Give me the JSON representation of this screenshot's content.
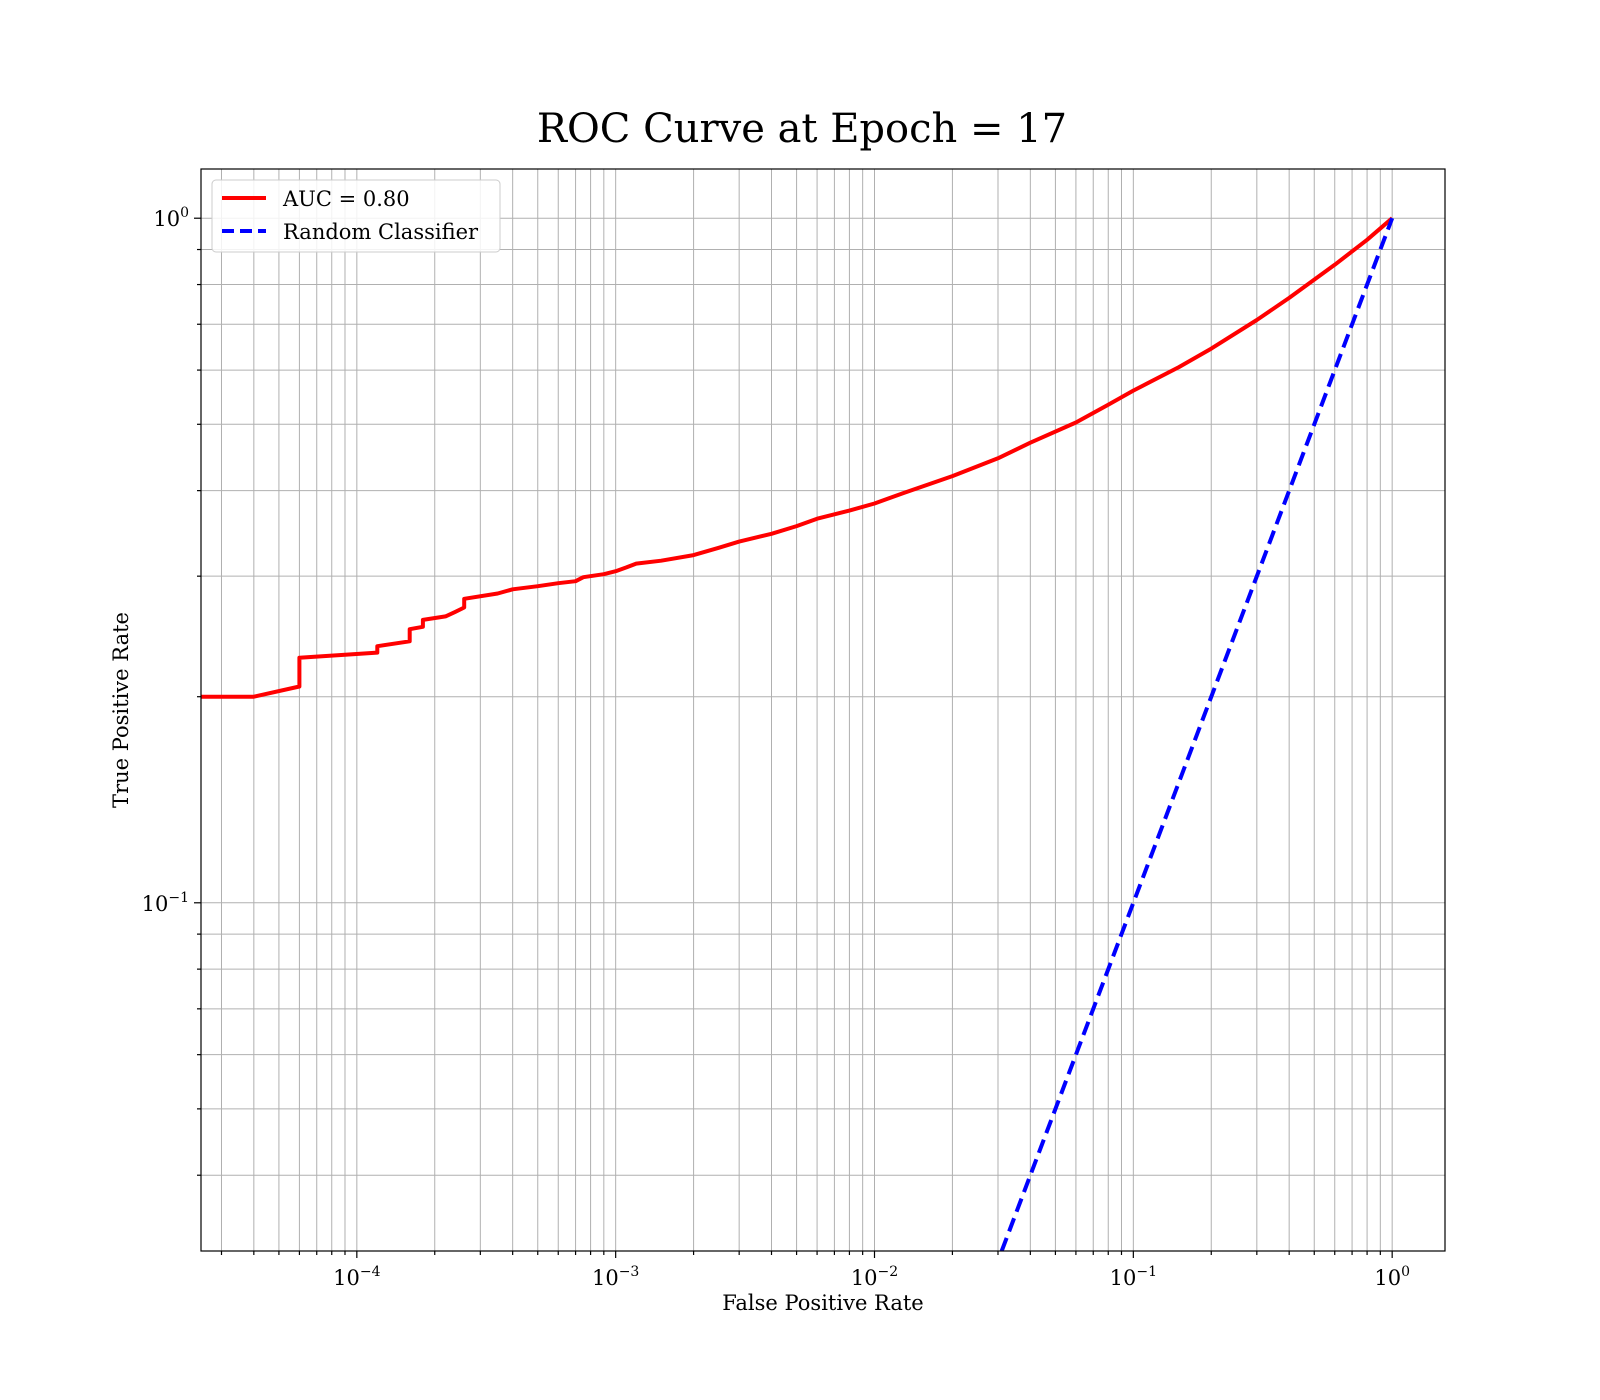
{
  "chart_data": {
    "type": "line",
    "title": "ROC Curve at Epoch = 17",
    "xlabel": "False Positive Rate",
    "ylabel": "True Positive Rate",
    "xscale": "log",
    "yscale": "log",
    "xlim": [
      2.5e-05,
      1.6
    ],
    "ylim": [
      0.031,
      1.18
    ],
    "grid": true,
    "legend_position": "top-left",
    "x_tick_labels": [
      {
        "base": "10",
        "exp": "−4",
        "value": 0.0001
      },
      {
        "base": "10",
        "exp": "−3",
        "value": 0.001
      },
      {
        "base": "10",
        "exp": "−2",
        "value": 0.01
      },
      {
        "base": "10",
        "exp": "−1",
        "value": 0.1
      },
      {
        "base": "10",
        "exp": "0",
        "value": 1
      }
    ],
    "y_tick_labels": [
      {
        "base": "10",
        "exp": "−1",
        "value": 0.1
      },
      {
        "base": "10",
        "exp": "0",
        "value": 1
      }
    ],
    "series": [
      {
        "name": "AUC = 0.80",
        "color": "#ff0000",
        "style": "solid",
        "points": [
          [
            2.5e-05,
            0.2
          ],
          [
            4e-05,
            0.2
          ],
          [
            6e-05,
            0.207
          ],
          [
            6e-05,
            0.228
          ],
          [
            0.00012,
            0.232
          ],
          [
            0.00012,
            0.237
          ],
          [
            0.00016,
            0.241
          ],
          [
            0.00016,
            0.251
          ],
          [
            0.00018,
            0.253
          ],
          [
            0.00018,
            0.259
          ],
          [
            0.00022,
            0.262
          ],
          [
            0.00024,
            0.266
          ],
          [
            0.00026,
            0.27
          ],
          [
            0.00026,
            0.278
          ],
          [
            0.00035,
            0.283
          ],
          [
            0.0004,
            0.287
          ],
          [
            0.0005,
            0.29
          ],
          [
            0.0006,
            0.293
          ],
          [
            0.0007,
            0.295
          ],
          [
            0.00075,
            0.299
          ],
          [
            0.0009,
            0.302
          ],
          [
            0.001,
            0.305
          ],
          [
            0.0011,
            0.309
          ],
          [
            0.0012,
            0.313
          ],
          [
            0.0015,
            0.316
          ],
          [
            0.002,
            0.322
          ],
          [
            0.0025,
            0.33
          ],
          [
            0.003,
            0.337
          ],
          [
            0.004,
            0.346
          ],
          [
            0.005,
            0.355
          ],
          [
            0.006,
            0.364
          ],
          [
            0.008,
            0.374
          ],
          [
            0.01,
            0.383
          ],
          [
            0.013,
            0.397
          ],
          [
            0.02,
            0.42
          ],
          [
            0.03,
            0.446
          ],
          [
            0.04,
            0.47
          ],
          [
            0.06,
            0.503
          ],
          [
            0.08,
            0.534
          ],
          [
            0.1,
            0.56
          ],
          [
            0.15,
            0.606
          ],
          [
            0.2,
            0.645
          ],
          [
            0.3,
            0.71
          ],
          [
            0.4,
            0.765
          ],
          [
            0.6,
            0.855
          ],
          [
            0.8,
            0.93
          ],
          [
            1.0,
            1.0
          ]
        ]
      },
      {
        "name": "Random Classifier",
        "color": "#0000ff",
        "style": "dashed",
        "points": [
          [
            0.031,
            0.031
          ],
          [
            1.0,
            1.0
          ]
        ]
      }
    ]
  }
}
